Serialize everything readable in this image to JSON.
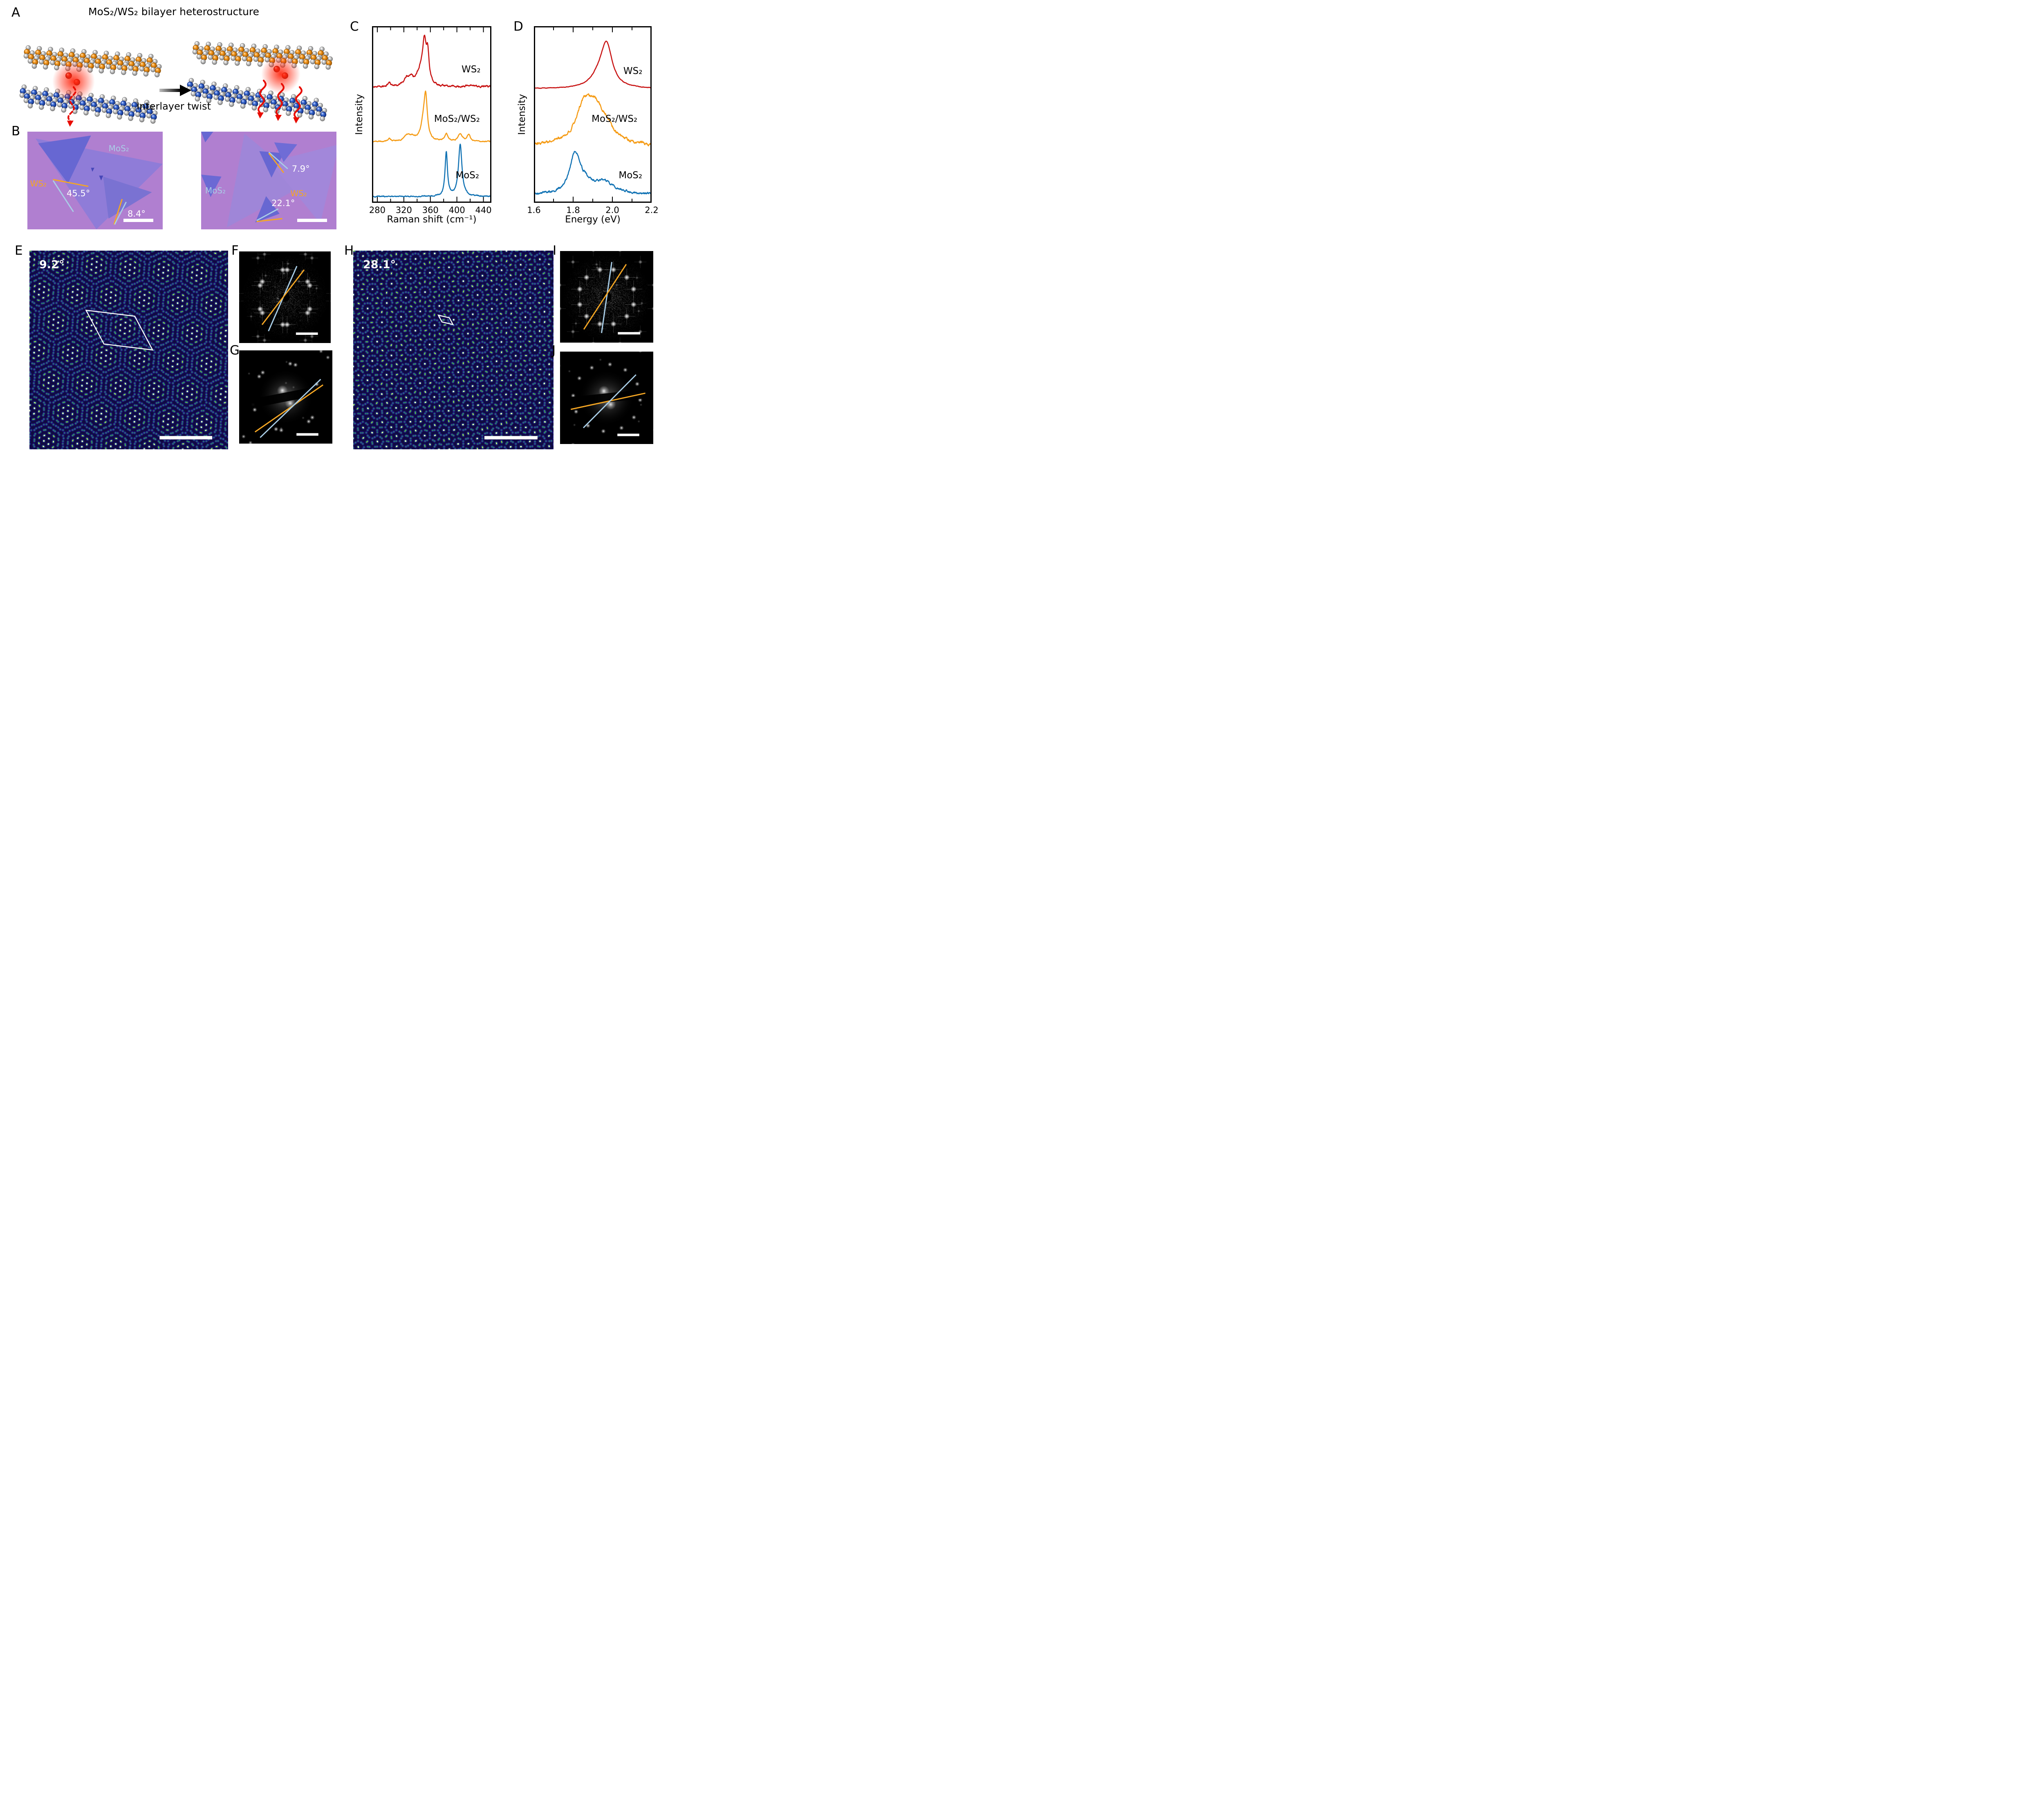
{
  "panel_a": {
    "label": "A",
    "title": "MoS₂/WS₂ bilayer heterostructure",
    "arrow_label": "Interlayer twist",
    "colors": {
      "metal_top": "#ef8f12",
      "metal_bottom": "#2d5ec8",
      "sulfur": "#c6c6c6",
      "exciton_glow": "#ff2810",
      "arrow": "#e02010"
    }
  },
  "panel_b": {
    "label": "B",
    "left_image": {
      "mos2_label": "MoS₂",
      "ws2_label": "WS₂",
      "angle_1": "45.5°",
      "angle_2": "8.4°"
    },
    "right_image": {
      "mos2_label": "MoS₂",
      "ws2_label": "WS₂",
      "angle_1": "7.9°",
      "angle_2": "22.1°"
    },
    "colors": {
      "background": "#b07fd0",
      "ws2_monolayer": "#9a82d6",
      "bilayer": "#6b6bd4",
      "dark_flake": "#5a55c8",
      "mos2_label": "#a9cde6",
      "ws2_label": "#f5a623",
      "angle_text": "#ffffff",
      "scale_bar": "#ffffff"
    }
  },
  "chart_data": [
    {
      "id": "raman",
      "panel_label": "C",
      "type": "line",
      "title": "",
      "xlabel": "Raman shift (cm⁻¹)",
      "ylabel": "Intensity",
      "xlim": [
        272,
        452
      ],
      "xticks": [
        280,
        320,
        360,
        400,
        440
      ],
      "xtick_labels": [
        "280",
        "320",
        "360",
        "400",
        "440"
      ],
      "xticks_minor": [
        300,
        340,
        380,
        420
      ],
      "grid": false,
      "series": [
        {
          "name": "WS₂",
          "color": "#c81414",
          "baseline": 0.345,
          "amplitude": 0.295,
          "noise": 0.01,
          "peaks": [
            {
              "x": 298,
              "h": 0.1,
              "w": 2.5
            },
            {
              "x": 324,
              "h": 0.2,
              "w": 5
            },
            {
              "x": 331,
              "h": 0.16,
              "w": 4
            },
            {
              "x": 345,
              "h": 0.38,
              "w": 7
            },
            {
              "x": 351,
              "h": 1.0,
              "w": 3.2
            },
            {
              "x": 356,
              "h": 0.72,
              "w": 2.6
            },
            {
              "x": 420,
              "h": 0.05,
              "w": 5
            }
          ]
        },
        {
          "name": "MoS₂/WS₂",
          "color": "#f59c17",
          "baseline": 0.655,
          "amplitude": 0.285,
          "noise": 0.006,
          "peaks": [
            {
              "x": 298,
              "h": 0.09,
              "w": 2.5
            },
            {
              "x": 325,
              "h": 0.17,
              "w": 5
            },
            {
              "x": 333,
              "h": 0.1,
              "w": 5
            },
            {
              "x": 350,
              "h": 0.55,
              "w": 5
            },
            {
              "x": 353,
              "h": 1.0,
              "w": 2.8
            },
            {
              "x": 384,
              "h": 0.22,
              "w": 2.8
            },
            {
              "x": 405,
              "h": 0.22,
              "w": 3.5
            },
            {
              "x": 418,
              "h": 0.2,
              "w": 3
            }
          ]
        },
        {
          "name": "MoS₂",
          "color": "#1273b4",
          "baseline": 0.965,
          "amplitude": 0.295,
          "noise": 0.006,
          "peaks": [
            {
              "x": 384,
              "h": 0.85,
              "w": 2.2
            },
            {
              "x": 405,
              "h": 1.0,
              "w": 3.2
            }
          ]
        }
      ]
    },
    {
      "id": "pl",
      "panel_label": "D",
      "type": "line",
      "title": "",
      "xlabel": "Energy (eV)",
      "ylabel": "Intensity",
      "xlim": [
        1.6,
        2.2
      ],
      "xticks": [
        1.6,
        1.8,
        2.0,
        2.2
      ],
      "xtick_labels": [
        "1.6",
        "1.8",
        "2.0",
        "2.2"
      ],
      "xticks_minor": [
        1.7,
        1.9,
        2.1
      ],
      "grid": false,
      "series": [
        {
          "name": "WS₂",
          "color": "#c81414",
          "baseline": 0.355,
          "amplitude": 0.27,
          "noise": 0.003,
          "peaks": [
            {
              "x": 1.97,
              "h": 1.0,
              "w": 0.035
            },
            {
              "x": 1.93,
              "h": 0.22,
              "w": 0.05
            }
          ]
        },
        {
          "name": "MoS₂/WS₂",
          "color": "#f59c17",
          "baseline": 0.68,
          "amplitude": 0.29,
          "noise": 0.016,
          "peaks": [
            {
              "x": 1.855,
              "h": 1.0,
              "w": 0.05
            },
            {
              "x": 1.91,
              "h": 0.8,
              "w": 0.055
            },
            {
              "x": 1.96,
              "h": 0.4,
              "w": 0.06
            }
          ]
        },
        {
          "name": "MoS₂",
          "color": "#1273b4",
          "baseline": 0.955,
          "amplitude": 0.25,
          "noise": 0.012,
          "peaks": [
            {
              "x": 1.81,
              "h": 1.0,
              "w": 0.032
            },
            {
              "x": 1.86,
              "h": 0.22,
              "w": 0.05
            },
            {
              "x": 1.96,
              "h": 0.3,
              "w": 0.06
            }
          ]
        }
      ]
    }
  ],
  "panel_e": {
    "label": "E",
    "twist": "9.2°",
    "twist_deg": 9.2
  },
  "panel_f": {
    "label": "F"
  },
  "panel_g": {
    "label": "G"
  },
  "panel_h": {
    "label": "H",
    "twist": "28.1°",
    "twist_deg": 28.1
  },
  "panel_i": {
    "label": "I"
  },
  "panel_j": {
    "label": "J"
  },
  "annotation_colors": {
    "mos2_line": "#a9cde6",
    "ws2_line": "#f5a623",
    "unit_cell": "#ffffff",
    "scale_bar": "#ffffff"
  }
}
